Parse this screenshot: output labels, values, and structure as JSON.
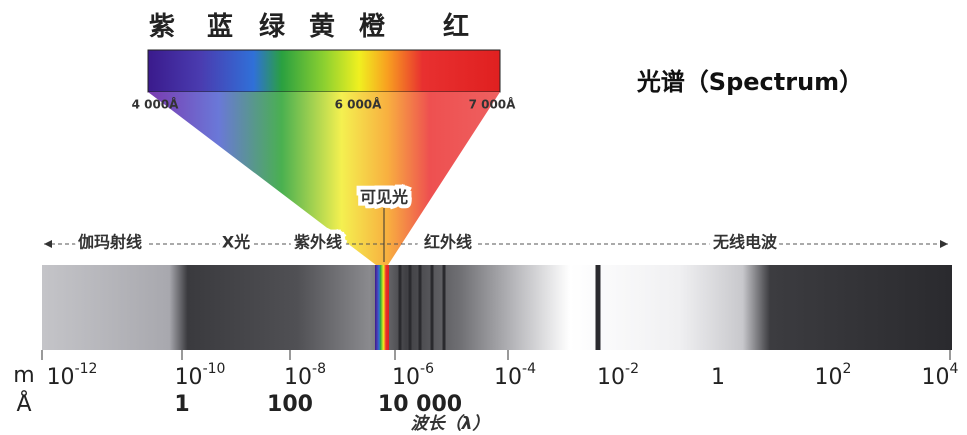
{
  "header": {
    "title": "光谱（Spectrum）"
  },
  "visible": {
    "colors": [
      "紫",
      "蓝",
      "绿",
      "黄",
      "橙",
      "红"
    ],
    "wavelengths": [
      "4 000Å",
      "6 000Å",
      "7 000Å"
    ],
    "label": "可见光"
  },
  "bands": [
    "伽玛射线",
    "X光",
    "紫外线",
    "红外线",
    "无线电波"
  ],
  "axis_m": {
    "unit": "m",
    "ticks": [
      {
        "base": "10",
        "exp": "-12"
      },
      {
        "base": "10",
        "exp": "-10"
      },
      {
        "base": "10",
        "exp": "-8"
      },
      {
        "base": "10",
        "exp": "-6"
      },
      {
        "base": "10",
        "exp": "-4"
      },
      {
        "base": "10",
        "exp": "-2"
      },
      {
        "base": "1"
      },
      {
        "base": "10",
        "exp": "2"
      },
      {
        "base": "10",
        "exp": "4"
      }
    ]
  },
  "axis_a": {
    "unit": "Å",
    "ticks": [
      "1",
      "100",
      "10 000"
    ]
  },
  "axis_label": "波长（λ）"
}
